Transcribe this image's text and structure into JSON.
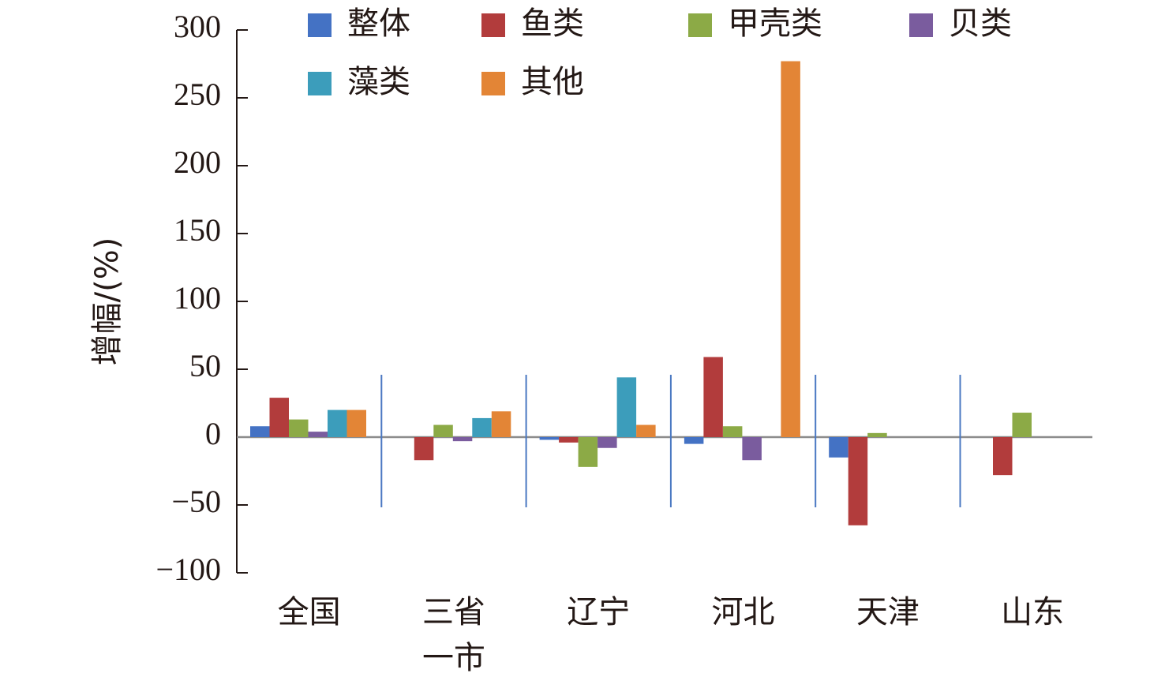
{
  "chart_data": {
    "type": "bar",
    "title": "",
    "xlabel": "",
    "ylabel": "增幅/(%)",
    "ylim": [
      -100,
      300
    ],
    "yticks": [
      300,
      250,
      200,
      150,
      100,
      50,
      0,
      -50,
      -100
    ],
    "ytick_labels": [
      "300",
      "250",
      "200",
      "150",
      "100",
      "50",
      "0",
      "−50",
      "−100"
    ],
    "legend_position": "top",
    "categories": [
      {
        "lines": [
          "全国"
        ]
      },
      {
        "lines": [
          "三省",
          "一市"
        ]
      },
      {
        "lines": [
          "辽宁"
        ]
      },
      {
        "lines": [
          "河北"
        ]
      },
      {
        "lines": [
          "天津"
        ]
      },
      {
        "lines": [
          "山东"
        ]
      }
    ],
    "series": [
      {
        "name": "整体",
        "color": "#4472c4",
        "values": [
          8,
          0,
          -2,
          -5,
          -15,
          0
        ]
      },
      {
        "name": "鱼类",
        "color": "#b23c3c",
        "values": [
          29,
          -17,
          -4,
          59,
          -65,
          -28
        ]
      },
      {
        "name": "甲壳类",
        "color": "#8caa46",
        "values": [
          13,
          9,
          -22,
          8,
          3,
          18
        ]
      },
      {
        "name": "贝类",
        "color": "#7a5c9e",
        "values": [
          4,
          -3,
          -8,
          -17,
          0,
          0
        ]
      },
      {
        "name": "藻类",
        "color": "#3c9dbb",
        "values": [
          20,
          14,
          44,
          0,
          0,
          0
        ]
      },
      {
        "name": "其他",
        "color": "#e38536",
        "values": [
          20,
          19,
          9,
          277,
          0,
          0
        ]
      }
    ]
  }
}
